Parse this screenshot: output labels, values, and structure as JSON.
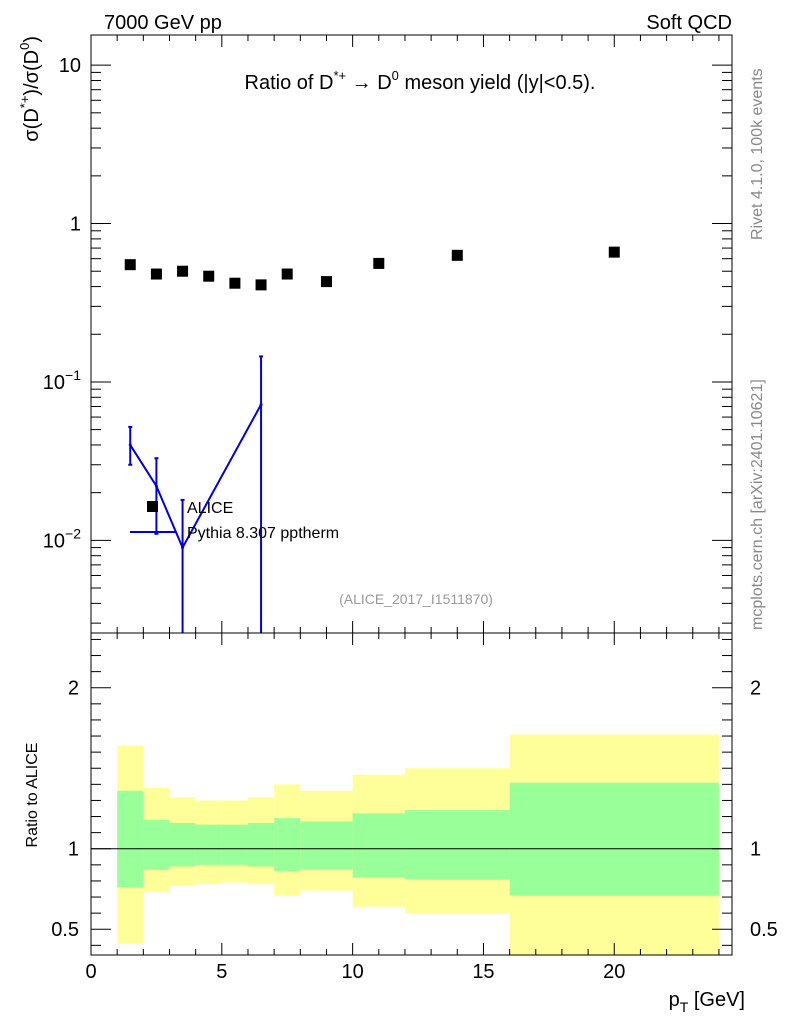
{
  "header": {
    "left": "7000 GeV pp",
    "right": "Soft QCD",
    "side_top": "Rivet 4.1.0,  100k events",
    "side_bottom": "mcplots.cern.ch [arXiv:2401.10621]"
  },
  "chart_data": [
    {
      "type": "scatter",
      "panel": "main",
      "title": "Ratio of D*+ → D0 meson yield (|y|<0.5).",
      "title_parts": {
        "a": "Ratio of D",
        "b": "*+",
        "c": " → D",
        "d": "0",
        "e": " meson yield (|y|<0.5)."
      },
      "ylabel": "σ(D*+)/σ(D0)",
      "ylabel_parts": {
        "a": "σ(D",
        "b": "*+",
        "c": ")/σ(D",
        "d": "0",
        "e": ")"
      },
      "yscale": "log",
      "ylim": [
        0.0026,
        15.5
      ],
      "xlim": [
        0,
        24.5
      ],
      "yticks": [
        {
          "value": 10,
          "base": "10",
          "exp": ""
        },
        {
          "value": 1,
          "base": "1",
          "exp": ""
        },
        {
          "value": 0.1,
          "base": "10",
          "exp": "−1"
        },
        {
          "value": 0.01,
          "base": "10",
          "exp": "−2"
        }
      ],
      "annotation": "(ALICE_2017_I1511870)",
      "legend": [
        {
          "label": "ALICE",
          "marker": "square",
          "color": "#000000"
        },
        {
          "label": "Pythia 8.307 pptherm",
          "marker": "line",
          "color": "#0000dd"
        }
      ],
      "series": [
        {
          "name": "ALICE",
          "color": "#000000",
          "x": [
            1.5,
            2.5,
            3.5,
            4.5,
            5.5,
            6.5,
            7.5,
            9,
            11,
            14,
            20
          ],
          "y": [
            0.55,
            0.48,
            0.5,
            0.465,
            0.42,
            0.41,
            0.48,
            0.43,
            0.56,
            0.63,
            0.66
          ]
        },
        {
          "name": "Pythia 8.307 pptherm",
          "color": "#0000dd",
          "x": [
            1.5,
            2.5,
            3.5,
            6.5
          ],
          "y": [
            0.04,
            0.022,
            0.009,
            0.072
          ],
          "yerr_low": [
            0.03,
            0.011,
            0.0026,
            0.0026
          ],
          "yerr_high": [
            0.052,
            0.033,
            0.018,
            0.145
          ],
          "xerr_low": [
            0,
            0,
            0,
            0
          ],
          "xerr_high": [
            0,
            0,
            0,
            0
          ]
        }
      ]
    },
    {
      "type": "area",
      "panel": "ratio",
      "ylabel": "Ratio to ALICE",
      "xlabel_base": "p",
      "xlabel_sub": "T",
      "xlabel_unit": " [GeV]",
      "xlim": [
        0,
        24.5
      ],
      "ylim": [
        0.34,
        2.34
      ],
      "xticks": [
        0,
        5,
        10,
        15,
        20
      ],
      "yticks": [
        0.5,
        1,
        2
      ],
      "reference_line": 1,
      "bands": [
        {
          "x_lo": 1,
          "x_hi": 2,
          "inner_lo": 0.76,
          "inner_hi": 1.36,
          "outer_lo": 0.41,
          "outer_hi": 1.64
        },
        {
          "x_lo": 2,
          "x_hi": 3,
          "inner_lo": 0.87,
          "inner_hi": 1.18,
          "outer_lo": 0.73,
          "outer_hi": 1.38
        },
        {
          "x_lo": 3,
          "x_hi": 4,
          "inner_lo": 0.89,
          "inner_hi": 1.16,
          "outer_lo": 0.77,
          "outer_hi": 1.32
        },
        {
          "x_lo": 4,
          "x_hi": 5,
          "inner_lo": 0.9,
          "inner_hi": 1.15,
          "outer_lo": 0.78,
          "outer_hi": 1.3
        },
        {
          "x_lo": 5,
          "x_hi": 6,
          "inner_lo": 0.9,
          "inner_hi": 1.15,
          "outer_lo": 0.79,
          "outer_hi": 1.3
        },
        {
          "x_lo": 6,
          "x_hi": 7,
          "inner_lo": 0.89,
          "inner_hi": 1.16,
          "outer_lo": 0.78,
          "outer_hi": 1.32
        },
        {
          "x_lo": 7,
          "x_hi": 8,
          "inner_lo": 0.86,
          "inner_hi": 1.19,
          "outer_lo": 0.71,
          "outer_hi": 1.4
        },
        {
          "x_lo": 8,
          "x_hi": 10,
          "inner_lo": 0.87,
          "inner_hi": 1.17,
          "outer_lo": 0.74,
          "outer_hi": 1.36
        },
        {
          "x_lo": 10,
          "x_hi": 12,
          "inner_lo": 0.82,
          "inner_hi": 1.22,
          "outer_lo": 0.64,
          "outer_hi": 1.46
        },
        {
          "x_lo": 12,
          "x_hi": 16,
          "inner_lo": 0.81,
          "inner_hi": 1.24,
          "outer_lo": 0.6,
          "outer_hi": 1.5
        },
        {
          "x_lo": 16,
          "x_hi": 24,
          "inner_lo": 0.71,
          "inner_hi": 1.41,
          "outer_lo": 0.34,
          "outer_hi": 1.71
        }
      ],
      "colors": {
        "inner": "#99ff99",
        "outer": "#ffff99"
      }
    }
  ]
}
